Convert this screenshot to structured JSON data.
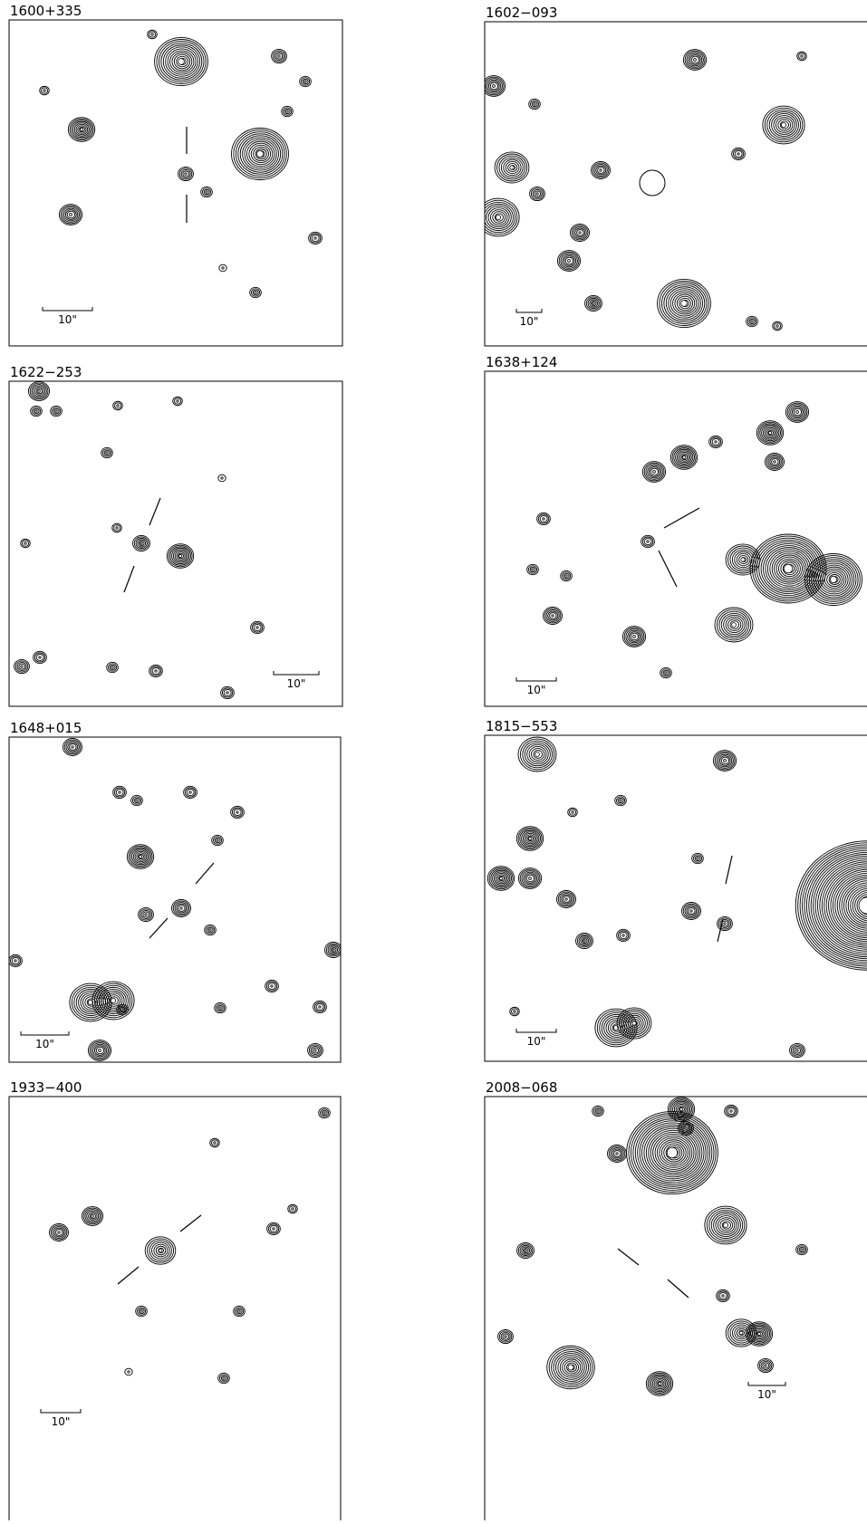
{
  "panels": [
    {
      "label": "1600+335",
      "scale_label": "10\""
    },
    {
      "label": "1602−093",
      "scale_label": "10\""
    },
    {
      "label": "1622−253",
      "scale_label": "10\""
    },
    {
      "label": "1638+124",
      "scale_label": "10\""
    },
    {
      "label": "1648+015",
      "scale_label": "10\""
    },
    {
      "label": "1815−553",
      "scale_label": "10\""
    },
    {
      "label": "1933−400",
      "scale_label": "10\""
    },
    {
      "label": "2008−068",
      "scale_label": "10\""
    }
  ]
}
